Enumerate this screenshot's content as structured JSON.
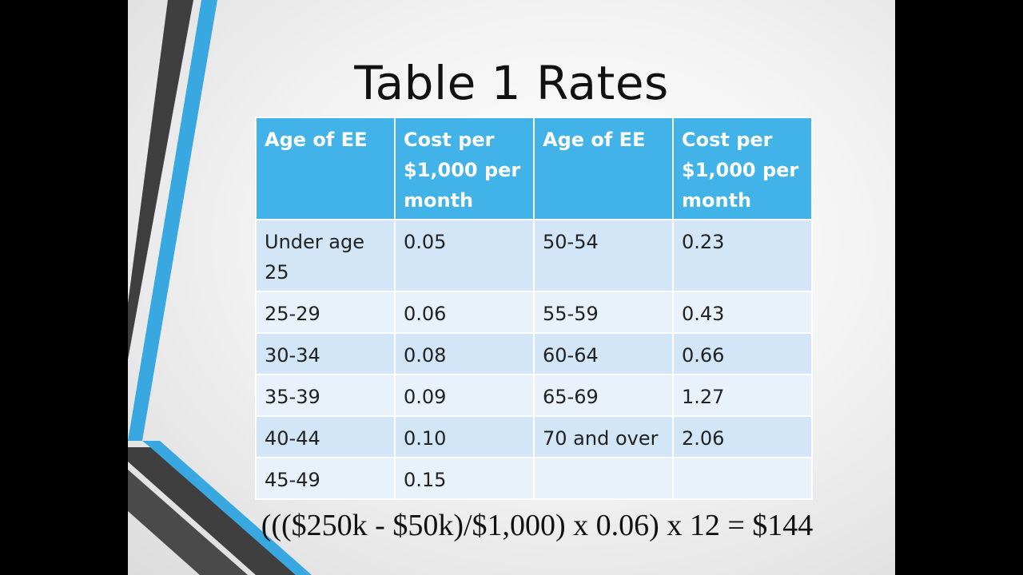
{
  "slide": {
    "title": "Table 1 Rates",
    "formula": "((($250k - $50k)/$1,000) x 0.06) x 12 = $144"
  },
  "table": {
    "headers": [
      "Age of EE",
      "Cost per $1,000 per month",
      "Age of EE",
      "Cost per $1,000 per month"
    ],
    "rows": [
      [
        "Under age 25",
        "0.05",
        "50-54",
        "0.23"
      ],
      [
        "25-29",
        "0.06",
        "55-59",
        "0.43"
      ],
      [
        "30-34",
        "0.08",
        "60-64",
        "0.66"
      ],
      [
        "35-39",
        "0.09",
        "65-69",
        "1.27"
      ],
      [
        "40-44",
        "0.10",
        "70 and over",
        "2.06"
      ],
      [
        "45-49",
        "0.15",
        "",
        ""
      ]
    ]
  },
  "colors": {
    "header_blue": "#41b3e8",
    "row_band_dark": "#d2e6f7",
    "row_band_light": "#e9f2fb",
    "accent_stripe_blue": "#3aa8e0",
    "accent_stripe_gray": "#3f3f3f"
  }
}
